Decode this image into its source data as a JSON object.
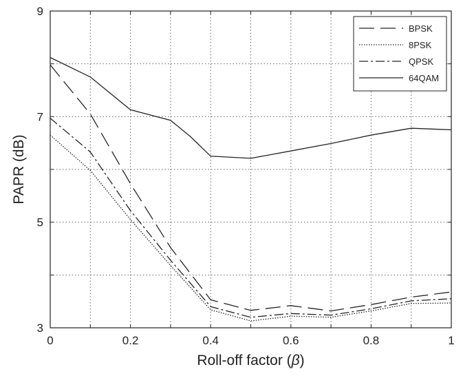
{
  "chart_data": {
    "type": "line",
    "xlabel_main": "Roll-off factor (",
    "xlabel_symbol": "β",
    "xlabel_end": ")",
    "ylabel": "PAPR (dB)",
    "xlim": [
      0,
      1
    ],
    "ylim": [
      3,
      9
    ],
    "xticks": [
      0,
      0.2,
      0.4,
      0.6,
      0.8,
      1
    ],
    "xtick_labels": [
      "0",
      "0.2",
      "0.4",
      "0.6",
      "0.8",
      "1"
    ],
    "yticks": [
      3,
      5,
      7,
      9
    ],
    "ytick_labels": [
      "3",
      "5",
      "7",
      "9"
    ],
    "grid": true,
    "legend_position": "top-right",
    "series": [
      {
        "name": "BPSK",
        "line_style": "long-dash",
        "color": "#222222",
        "x": [
          0,
          0.1,
          0.2,
          0.3,
          0.4,
          0.5,
          0.6,
          0.7,
          0.8,
          0.9,
          1.0
        ],
        "y": [
          7.98,
          7.05,
          5.73,
          4.52,
          3.53,
          3.33,
          3.42,
          3.32,
          3.44,
          3.58,
          3.68
        ]
      },
      {
        "name": "8PSK",
        "line_style": "dotted",
        "color": "#222222",
        "x": [
          0,
          0.1,
          0.2,
          0.3,
          0.4,
          0.5,
          0.6,
          0.7,
          0.8,
          0.9,
          1.0
        ],
        "y": [
          6.65,
          5.98,
          5.05,
          4.18,
          3.34,
          3.13,
          3.22,
          3.2,
          3.32,
          3.46,
          3.47
        ]
      },
      {
        "name": "QPSK",
        "line_style": "dash-dot",
        "color": "#222222",
        "x": [
          0,
          0.1,
          0.2,
          0.3,
          0.4,
          0.5,
          0.6,
          0.7,
          0.8,
          0.9,
          1.0
        ],
        "y": [
          6.97,
          6.33,
          5.22,
          4.28,
          3.4,
          3.2,
          3.27,
          3.24,
          3.36,
          3.51,
          3.55
        ]
      },
      {
        "name": "64QAM",
        "line_style": "solid",
        "color": "#222222",
        "x": [
          0,
          0.1,
          0.2,
          0.3,
          0.35,
          0.4,
          0.5,
          0.6,
          0.7,
          0.8,
          0.9,
          1.0
        ],
        "y": [
          8.12,
          7.75,
          7.13,
          6.93,
          6.62,
          6.25,
          6.21,
          6.35,
          6.49,
          6.65,
          6.78,
          6.75
        ]
      }
    ]
  }
}
